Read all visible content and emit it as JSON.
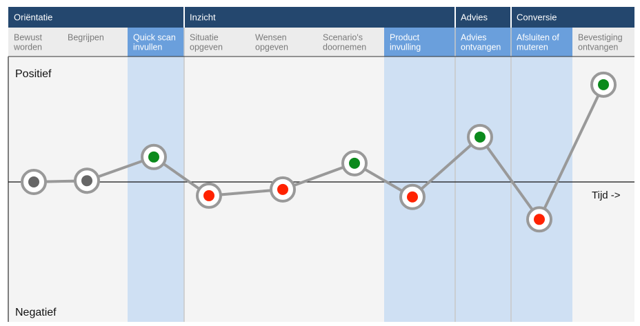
{
  "chart_data": {
    "type": "line",
    "y_top_label": "Positief",
    "y_bottom_label": "Negatief",
    "x_label": "Tijd ->",
    "phases": [
      {
        "name": "Oriëntatie",
        "steps": 3
      },
      {
        "name": "Inzicht",
        "steps": 4
      },
      {
        "name": "Advies",
        "steps": 1
      },
      {
        "name": "Conversie",
        "steps": 2
      }
    ],
    "categories": [
      [
        "Bewust",
        "worden"
      ],
      [
        "Begrijpen"
      ],
      [
        "Quick scan",
        "invullen"
      ],
      [
        "Situatie",
        "opgeven"
      ],
      [
        "Wensen",
        "opgeven"
      ],
      [
        "Scenario's",
        "doornemen"
      ],
      [
        "Product",
        "invulling"
      ],
      [
        "Advies",
        "ontvangen"
      ],
      [
        "Afsluiten of",
        "muteren"
      ],
      [
        "Bevestiging",
        "ontvangen"
      ]
    ],
    "highlight": [
      false,
      false,
      true,
      false,
      false,
      false,
      true,
      true,
      true,
      false
    ],
    "values": [
      0,
      0.01,
      0.2,
      -0.11,
      -0.06,
      0.15,
      -0.12,
      0.36,
      -0.3,
      0.78
    ],
    "point_colors": [
      "#666666",
      "#666666",
      "#0b8a1c",
      "#ff2200",
      "#ff2200",
      "#0b8a1c",
      "#ff2200",
      "#0b8a1c",
      "#ff2200",
      "#0b8a1c"
    ],
    "color": "#999999",
    "ylim": [
      -1,
      1
    ]
  }
}
